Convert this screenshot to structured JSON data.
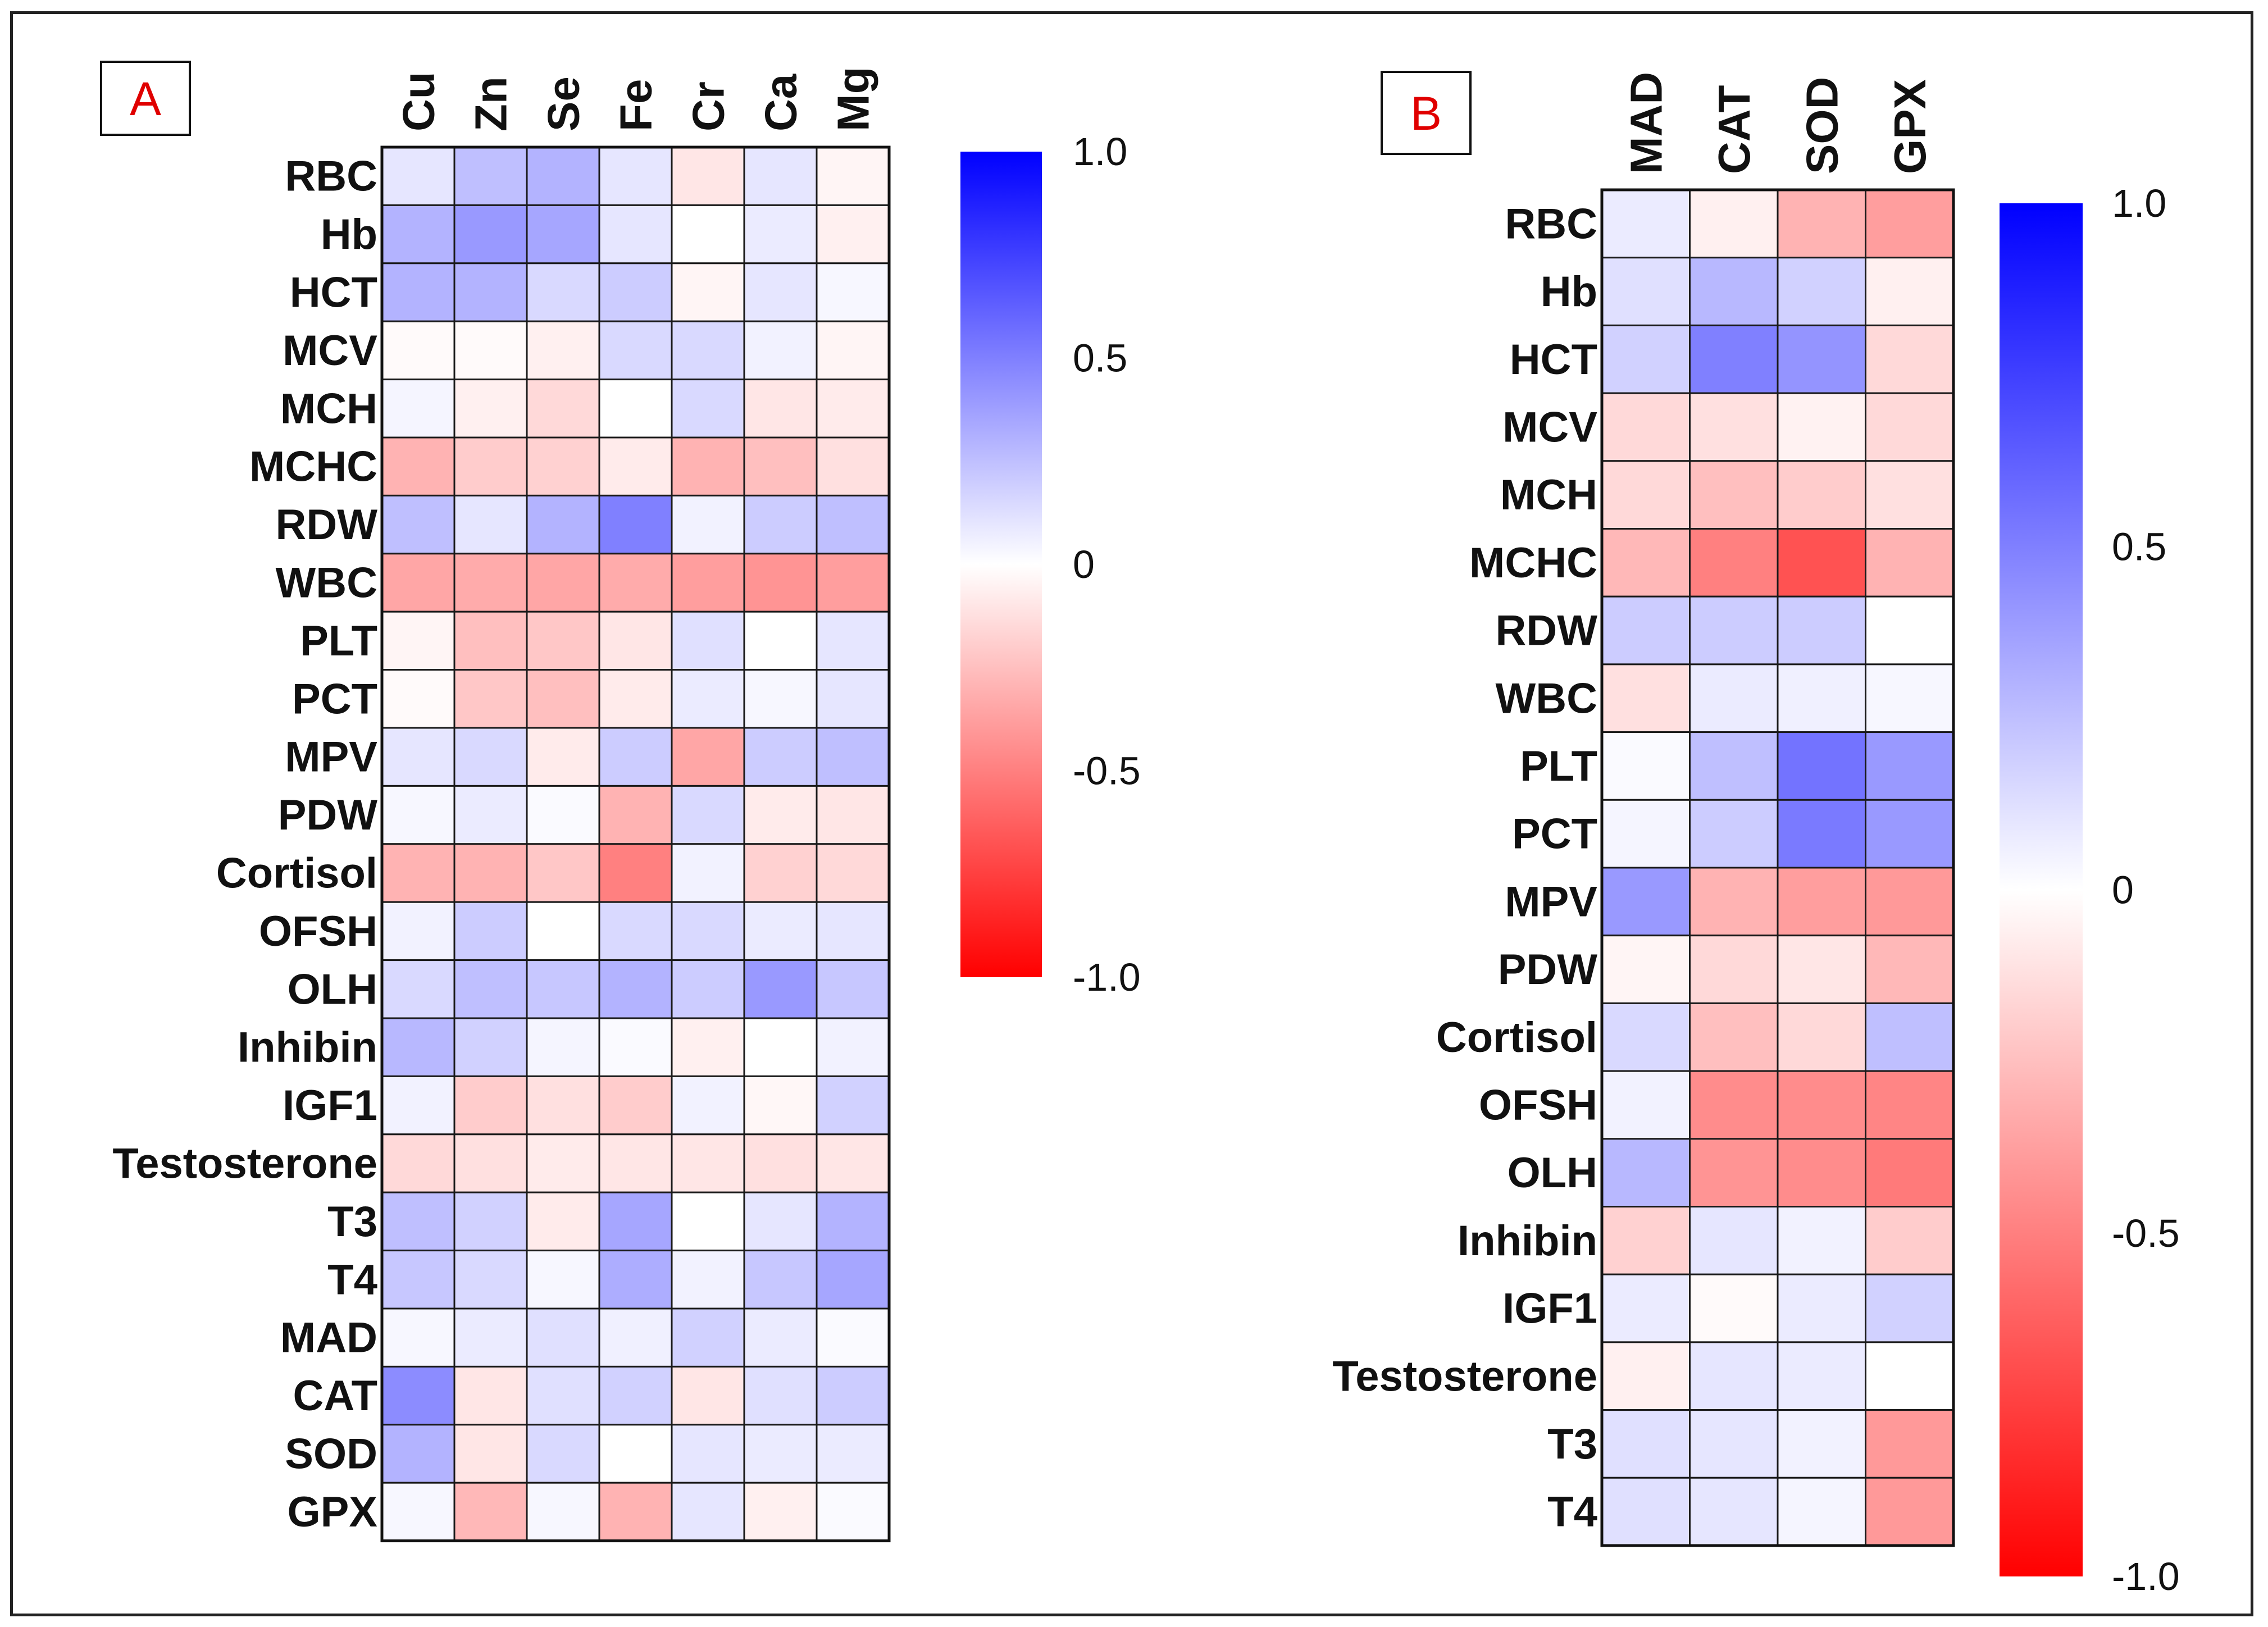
{
  "chart_data": [
    {
      "type": "heatmap",
      "panel_label": "A",
      "columns": [
        "Cu",
        "Zn",
        "Se",
        "Fe",
        "Cr",
        "Ca",
        "Mg"
      ],
      "rows": [
        "RBC",
        "Hb",
        "HCT",
        "MCV",
        "MCH",
        "MCHC",
        "RDW",
        "WBC",
        "PLT",
        "PCT",
        "MPV",
        "PDW",
        "Cortisol",
        "OFSH",
        "OLH",
        "Inhibin",
        "IGF1",
        "Testosterone",
        "T3",
        "T4",
        "MAD",
        "CAT",
        "SOD",
        "GPX"
      ],
      "values": [
        [
          0.1,
          0.25,
          0.3,
          0.1,
          -0.1,
          0.1,
          -0.04
        ],
        [
          0.3,
          0.4,
          0.35,
          0.1,
          0.0,
          0.08,
          -0.06
        ],
        [
          0.3,
          0.3,
          0.15,
          0.2,
          -0.04,
          0.1,
          0.03
        ],
        [
          -0.02,
          -0.02,
          -0.06,
          0.15,
          0.15,
          0.05,
          -0.04
        ],
        [
          0.04,
          -0.06,
          -0.15,
          0.0,
          0.15,
          -0.1,
          -0.08
        ],
        [
          -0.3,
          -0.2,
          -0.18,
          -0.08,
          -0.3,
          -0.25,
          -0.12
        ],
        [
          0.25,
          0.1,
          0.3,
          0.5,
          0.05,
          0.2,
          0.25
        ],
        [
          -0.35,
          -0.33,
          -0.35,
          -0.33,
          -0.38,
          -0.42,
          -0.38
        ],
        [
          -0.04,
          -0.25,
          -0.22,
          -0.1,
          0.12,
          0.0,
          0.1
        ],
        [
          -0.02,
          -0.22,
          -0.25,
          -0.08,
          0.08,
          0.03,
          0.1
        ],
        [
          0.1,
          0.15,
          -0.08,
          0.2,
          -0.35,
          0.2,
          0.25
        ],
        [
          0.03,
          0.08,
          0.02,
          -0.3,
          0.15,
          -0.08,
          -0.1
        ],
        [
          -0.3,
          -0.3,
          -0.22,
          -0.5,
          0.05,
          -0.18,
          -0.15
        ],
        [
          0.05,
          0.2,
          0.0,
          0.15,
          0.15,
          0.08,
          0.1
        ],
        [
          0.15,
          0.25,
          0.22,
          0.3,
          0.2,
          0.4,
          0.22
        ],
        [
          0.28,
          0.18,
          0.04,
          0.02,
          -0.06,
          0.0,
          0.05
        ],
        [
          0.05,
          -0.2,
          -0.12,
          -0.2,
          0.05,
          -0.03,
          0.18
        ],
        [
          -0.15,
          -0.12,
          -0.08,
          -0.1,
          -0.1,
          -0.12,
          -0.1
        ],
        [
          0.25,
          0.18,
          -0.08,
          0.35,
          0.0,
          0.1,
          0.3
        ],
        [
          0.22,
          0.15,
          0.03,
          0.32,
          0.05,
          0.22,
          0.35
        ],
        [
          0.03,
          0.08,
          0.12,
          0.06,
          0.18,
          0.08,
          0.02
        ],
        [
          0.45,
          -0.1,
          0.12,
          0.18,
          -0.1,
          0.12,
          0.2
        ],
        [
          0.3,
          -0.1,
          0.15,
          0.0,
          0.1,
          0.08,
          0.08
        ],
        [
          0.03,
          -0.28,
          0.03,
          -0.3,
          0.1,
          -0.06,
          0.02
        ]
      ],
      "colorbar": {
        "min": -1.0,
        "max": 1.0,
        "ticks": [
          "1.0",
          "0.5",
          "0",
          "-0.5",
          "-1.0"
        ],
        "colors": {
          "low": "#ff0000",
          "mid": "#ffffff",
          "high": "#0000ff"
        }
      }
    },
    {
      "type": "heatmap",
      "panel_label": "B",
      "columns": [
        "MAD",
        "CAT",
        "SOD",
        "GPX"
      ],
      "rows": [
        "RBC",
        "Hb",
        "HCT",
        "MCV",
        "MCH",
        "MCHC",
        "RDW",
        "WBC",
        "PLT",
        "PCT",
        "MPV",
        "PDW",
        "Cortisol",
        "OFSH",
        "OLH",
        "Inhibin",
        "IGF1",
        "Testosterone",
        "T3",
        "T4"
      ],
      "values": [
        [
          0.08,
          -0.06,
          -0.3,
          -0.38
        ],
        [
          0.12,
          0.28,
          0.18,
          -0.06
        ],
        [
          0.18,
          0.5,
          0.42,
          -0.15
        ],
        [
          -0.15,
          -0.12,
          -0.05,
          -0.15
        ],
        [
          -0.15,
          -0.25,
          -0.2,
          -0.12
        ],
        [
          -0.28,
          -0.5,
          -0.68,
          -0.3
        ],
        [
          0.2,
          0.2,
          0.2,
          0.0
        ],
        [
          -0.12,
          0.08,
          0.06,
          0.03
        ],
        [
          0.02,
          0.25,
          0.55,
          0.4
        ],
        [
          0.04,
          0.2,
          0.52,
          0.4
        ],
        [
          0.4,
          -0.3,
          -0.38,
          -0.4
        ],
        [
          -0.04,
          -0.15,
          -0.1,
          -0.28
        ],
        [
          0.15,
          -0.25,
          -0.15,
          0.25
        ],
        [
          0.05,
          -0.45,
          -0.45,
          -0.48
        ],
        [
          0.28,
          -0.42,
          -0.45,
          -0.52
        ],
        [
          -0.18,
          0.1,
          0.05,
          -0.2
        ],
        [
          0.08,
          -0.02,
          0.08,
          0.18
        ],
        [
          -0.06,
          0.1,
          0.08,
          0.0
        ],
        [
          0.12,
          0.1,
          0.05,
          -0.4
        ],
        [
          0.12,
          0.1,
          0.04,
          -0.4
        ]
      ],
      "colorbar": {
        "min": -1.0,
        "max": 1.0,
        "ticks": [
          "1.0",
          "0.5",
          "0",
          "-0.5",
          "-1.0"
        ],
        "colors": {
          "low": "#ff0000",
          "mid": "#ffffff",
          "high": "#0000ff"
        }
      }
    }
  ]
}
